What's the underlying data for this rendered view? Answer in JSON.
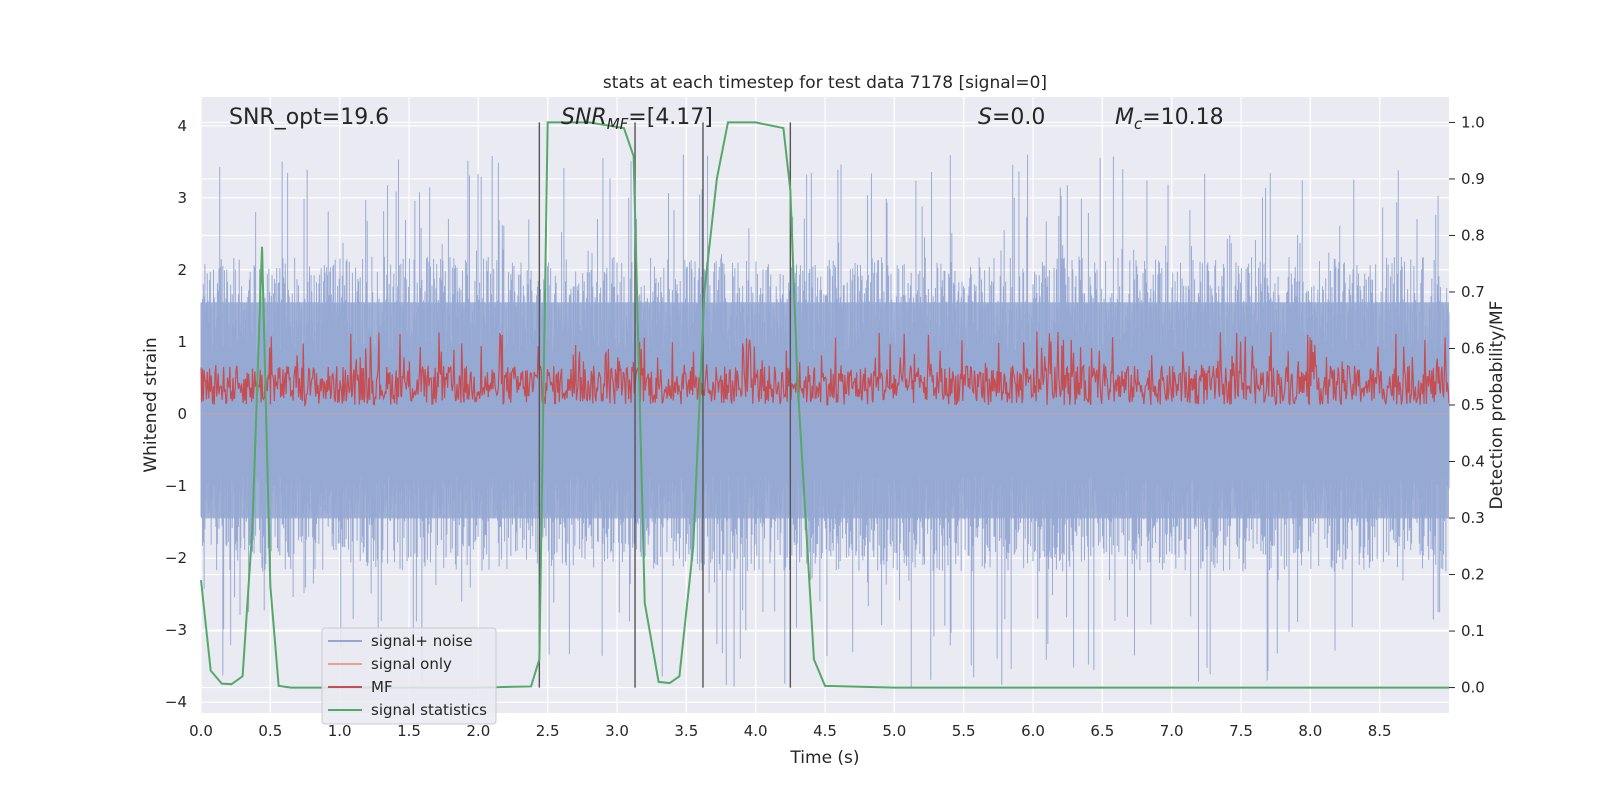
{
  "chart_data": {
    "type": "line",
    "title": "stats at each timestep for test data 7178 [signal=0]",
    "xlabel": "Time (s)",
    "ylabel_left": "Whitened strain",
    "ylabel_right": "Detection probability/MF",
    "xlim": [
      0,
      9.0
    ],
    "ylim_left": [
      -4.15,
      4.4
    ],
    "ylim_right": [
      -0.045,
      1.045
    ],
    "x_ticks": [
      "0.0",
      "0.5",
      "1.0",
      "1.5",
      "2.0",
      "2.5",
      "3.0",
      "3.5",
      "4.0",
      "4.5",
      "5.0",
      "5.5",
      "6.0",
      "6.5",
      "7.0",
      "7.5",
      "8.0",
      "8.5"
    ],
    "x_tick_values": [
      0,
      0.5,
      1.0,
      1.5,
      2.0,
      2.5,
      3.0,
      3.5,
      4.0,
      4.5,
      5.0,
      5.5,
      6.0,
      6.5,
      7.0,
      7.5,
      8.0,
      8.5
    ],
    "y_ticks_left": [
      "−4",
      "−3",
      "−2",
      "−1",
      "0",
      "1",
      "2",
      "3",
      "4"
    ],
    "y_tick_values_left": [
      -4,
      -3,
      -2,
      -1,
      0,
      1,
      2,
      3,
      4
    ],
    "y_ticks_right": [
      "0.0",
      "0.1",
      "0.2",
      "0.3",
      "0.4",
      "0.5",
      "0.6",
      "0.7",
      "0.8",
      "0.9",
      "1.0"
    ],
    "y_tick_values_right": [
      0,
      0.1,
      0.2,
      0.3,
      0.4,
      0.5,
      0.6,
      0.7,
      0.8,
      0.9,
      1.0
    ],
    "grid": true,
    "legend_position": "lower-left",
    "annotations": {
      "snr_opt": "SNR_opt=19.6",
      "snr_mf_main": "SNR",
      "snr_mf_sub": "MF",
      "snr_mf_value": "=[4.17]",
      "s_symbol": "S",
      "s_value": "=0.0",
      "mc_symbol": "M",
      "mc_sub": "c",
      "mc_value": "=10.18"
    },
    "vertical_lines_x": [
      2.44,
      3.13,
      3.62,
      4.25
    ],
    "series": [
      {
        "name": "signal+ noise",
        "color": "#95a8d2",
        "axis": "left",
        "style": "noise",
        "range": [
          -3.8,
          3.6
        ],
        "dense_range": [
          -1.9,
          1.9
        ],
        "samples": 1600
      },
      {
        "name": "signal only",
        "color": "#e8a088",
        "axis": "left",
        "style": "flat",
        "values_const": 0
      },
      {
        "name": "MF",
        "color": "#c44e52",
        "axis": "right",
        "style": "noise",
        "range": [
          0.5,
          0.63
        ],
        "dense_range": [
          0.5,
          0.57
        ],
        "samples": 1600
      },
      {
        "name": "signal statistics",
        "color": "#55a868",
        "axis": "right",
        "style": "line",
        "x": [
          0.0,
          0.07,
          0.15,
          0.22,
          0.3,
          0.37,
          0.44,
          0.5,
          0.56,
          0.65,
          1.0,
          1.5,
          2.0,
          2.38,
          2.44,
          2.5,
          2.8,
          3.05,
          3.12,
          3.2,
          3.3,
          3.38,
          3.45,
          3.55,
          3.63,
          3.72,
          3.8,
          4.0,
          4.2,
          4.25,
          4.3,
          4.42,
          4.5,
          5.0,
          6.0,
          7.0,
          8.0,
          9.0
        ],
        "values": [
          0.19,
          0.03,
          0.007,
          0.006,
          0.02,
          0.28,
          0.78,
          0.18,
          0.003,
          0.0,
          0.0,
          0.0,
          0.0,
          0.002,
          0.05,
          1.0,
          1.0,
          0.99,
          0.94,
          0.15,
          0.01,
          0.008,
          0.02,
          0.25,
          0.7,
          0.9,
          1.0,
          1.0,
          0.99,
          0.88,
          0.55,
          0.05,
          0.003,
          0.0,
          0.0,
          0.0,
          0.0,
          0.0
        ]
      }
    ]
  }
}
